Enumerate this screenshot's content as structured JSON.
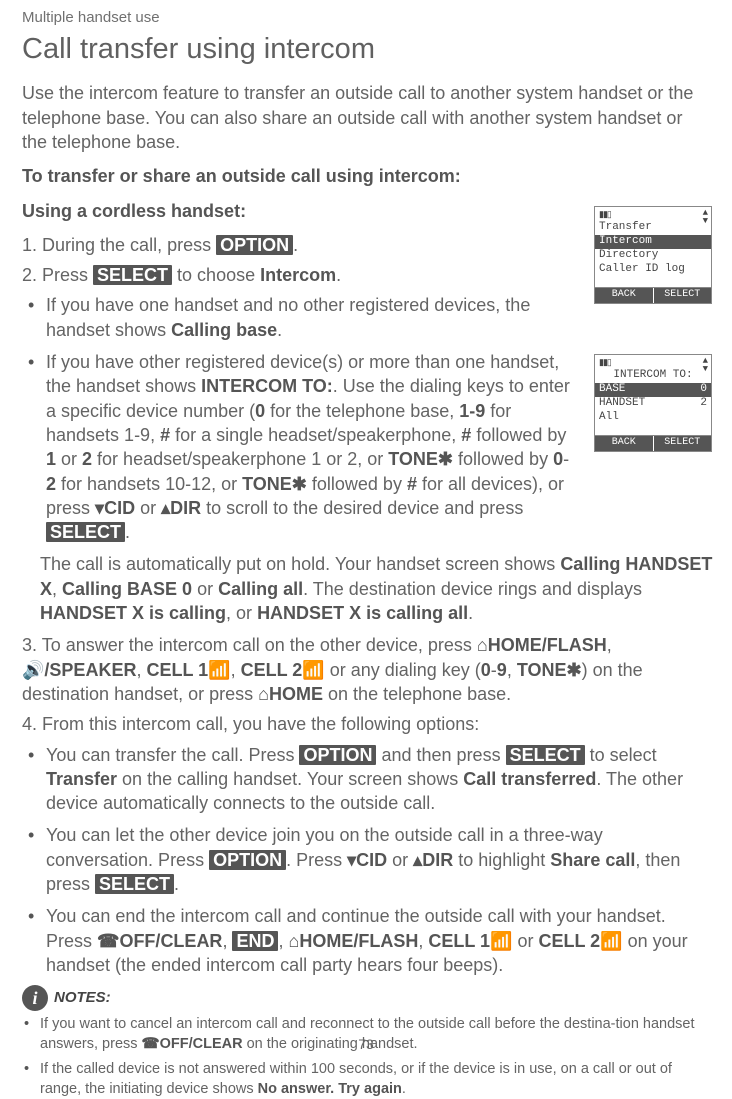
{
  "header_small": "Multiple handset use",
  "h1": "Call transfer using intercom",
  "intro": "Use the intercom feature to transfer an outside call to another system handset or the telephone base. You can also share an outside call with another system handset or the telephone base.",
  "sub1": "To transfer or share an outside call using intercom:",
  "sub2": "Using a cordless handset:",
  "step1_pre": "1. During the call, press ",
  "step1_key": "OPTION",
  "step1_post": ".",
  "step2_pre": "2. Press ",
  "step2_key": "SELECT",
  "step2_mid": " to choose ",
  "step2_strong": "Intercom",
  "step2_post": ".",
  "b1_a": "If you have one handset and no other registered devices, the handset shows ",
  "b1_b": "Calling base",
  "b1_c": ".",
  "b2_a": "If you have other registered device(s) or more than one handset, the handset shows ",
  "b2_b": "INTERCOM TO:",
  "b2_c": ". Use the dialing keys to enter a specific device number (",
  "b2_d": "0",
  "b2_e": " for the telephone base, ",
  "b2_f": "1-9",
  "b2_g": " for handsets 1-9, ",
  "b2_h": "#",
  "b2_i": " for a single headset/speakerphone, ",
  "b2_j": "#",
  "b2_k": " followed by ",
  "b2_l": "1",
  "b2_m": " or ",
  "b2_n": "2",
  "b2_o": " for headset/speakerphone 1 or 2, or ",
  "b2_p": "TONE✱",
  "b2_q": " followed by ",
  "b2_r": "0",
  "b2_s": "-",
  "b2_t": "2",
  "b2_u": " for handsets 10-12, or ",
  "b2_v": "TONE✱",
  "b2_w": " followed by ",
  "b2_x": "#",
  "b2_y": " for all devices), or press ",
  "b2_cid": "CID",
  "b2_z": " or ",
  "b2_dir": "DIR",
  "b2_za": " to scroll to the desired device and press ",
  "b2_sel": "SELECT",
  "b2_zb": ".",
  "hold_a": "The call is automatically put on hold. Your handset screen shows ",
  "hold_b": "Calling HANDSET X",
  "hold_c": ", ",
  "hold_d": "Calling BASE 0",
  "hold_e": " or ",
  "hold_f": "Calling all",
  "hold_g": ". The destination device rings and displays ",
  "hold_h": "HANDSET X is calling",
  "hold_i": ", or ",
  "hold_j": "HANDSET X is calling all",
  "hold_k": ".",
  "step3_a": "3. To answer the intercom call on the other device, press ",
  "step3_home": "HOME/",
  "step3_flash": "FLASH",
  "step3_b": ", ",
  "step3_spk": "/SPEAKER",
  "step3_c": ", ",
  "step3_cell1": "CELL 1",
  "step3_d": ", ",
  "step3_cell2": "CELL 2",
  "step3_e": " or any dialing key (",
  "step3_f": "0",
  "step3_g": "-",
  "step3_h": "9",
  "step3_i": ", ",
  "step3_tone": "TONE✱",
  "step3_j": ") on the destination handset, or press ",
  "step3_home2": "HOME",
  "step3_k": " on the telephone base.",
  "step4": "4. From this intercom call, you have the following options:",
  "o1_a": "You can transfer the call. Press ",
  "o1_opt": "OPTION",
  "o1_b": " and then press ",
  "o1_sel": "SELECT",
  "o1_c": " to select ",
  "o1_d": "Transfer",
  "o1_e": " on the calling handset. Your screen shows ",
  "o1_f": "Call transferred",
  "o1_g": ". The other device automatically connects to the outside call.",
  "o2_a": "You can let the other device join you on the outside call in a three-way conversation. Press ",
  "o2_opt": "OPTION",
  "o2_b": ". Press ",
  "o2_cid": "CID",
  "o2_c": " or ",
  "o2_dir": "DIR",
  "o2_d": " to highlight ",
  "o2_e": "Share call",
  "o2_f": ", then press ",
  "o2_sel": "SELECT",
  "o2_g": ".",
  "o3_a": "You can end the intercom call and continue the outside call with your handset. Press ",
  "o3_off": "OFF/",
  "o3_clear": "CLEAR",
  "o3_b": ", ",
  "o3_end": "END",
  "o3_c": ", ",
  "o3_home": "HOME/",
  "o3_flash": "FLASH",
  "o3_d": ", ",
  "o3_cell1": "CELL 1",
  "o3_e": " or ",
  "o3_cell2": "CELL 2",
  "o3_f": " on your handset (the ended intercom call party hears four beeps).",
  "notes_label": "NOTES:",
  "n1_a": "If you want to cancel an intercom call and reconnect to the outside call before the destina-tion handset answers, press ",
  "n1_off": "OFF",
  "n1_clear": "/CLEAR",
  "n1_b": " on the originating handset.",
  "n2_a": "If the called device is not answered within 100 seconds, or if the device is in use, on a call or out of range, the initiating device shows ",
  "n2_b": "No answer. Try again",
  "n2_c": ".",
  "page": "73",
  "lcd1": {
    "r1": "Transfer",
    "r2": "Intercom",
    "r3": "Directory",
    "r4": "Caller ID log",
    "back": "BACK",
    "select": "SELECT"
  },
  "lcd2": {
    "title": "INTERCOM TO:",
    "r1l": "BASE",
    "r1r": "0",
    "r2l": "HANDSET",
    "r2r": "2",
    "r3l": "All",
    "back": "BACK",
    "select": "SELECT"
  }
}
